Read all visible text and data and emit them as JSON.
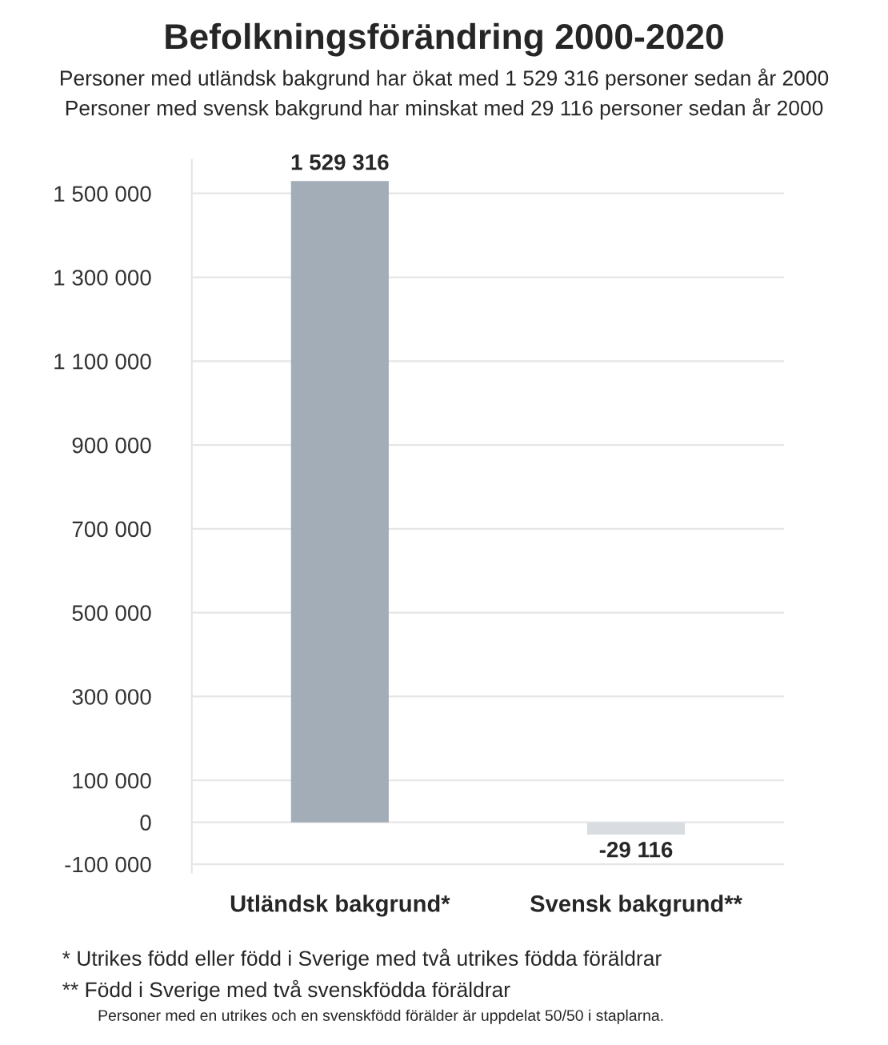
{
  "chart_data": {
    "type": "bar",
    "title": "Befolkningsförändring 2000-2020",
    "subtitle": "Personer med utländsk bakgrund har ökat med 1 529 316 personer sedan år 2000\nPersoner med svensk bakgrund har minskat med 29 116 personer sedan år 2000",
    "categories": [
      "Utländsk bakgrund*",
      "Svensk bakgrund**"
    ],
    "values": [
      1529316,
      -29116
    ],
    "colors": [
      "#a3adb8",
      "#d9dde2"
    ],
    "value_labels": [
      "1 529 316",
      "-29 116"
    ],
    "ylim": [
      -120000,
      1580000
    ],
    "yticks": [
      {
        "value": -100000,
        "label": "-100 000"
      },
      {
        "value": 0,
        "label": "0"
      },
      {
        "value": 100000,
        "label": "100 000"
      },
      {
        "value": 300000,
        "label": "300 000"
      },
      {
        "value": 500000,
        "label": "500 000"
      },
      {
        "value": 700000,
        "label": "700 000"
      },
      {
        "value": 900000,
        "label": "900 000"
      },
      {
        "value": 1100000,
        "label": "1 100 000"
      },
      {
        "value": 1300000,
        "label": "1 300 000"
      },
      {
        "value": 1500000,
        "label": "1 500 000"
      }
    ],
    "grid": "y",
    "legend": false,
    "annotations": [
      "* Utrikes född eller född i Sverige med två utrikes födda föräldrar",
      "** Född i Sverige med två svenskfödda föräldrar",
      "Personer med en utrikes och en svenskfödd förälder är uppdelat 50/50 i staplarna."
    ]
  }
}
